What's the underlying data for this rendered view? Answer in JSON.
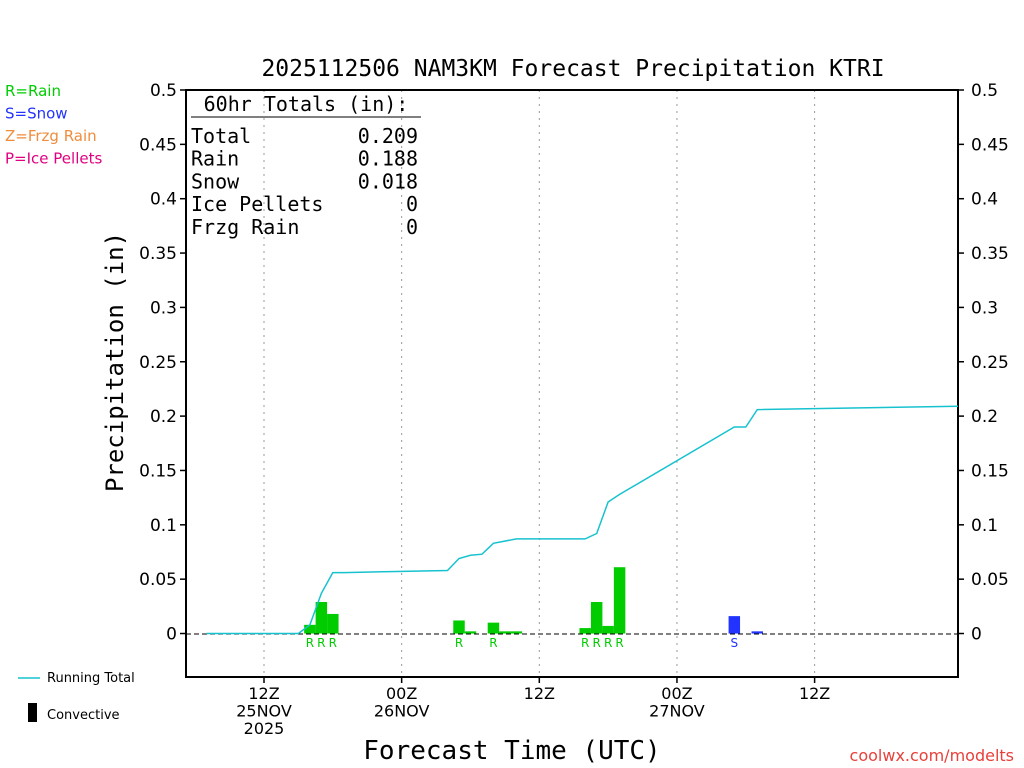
{
  "chart_data": {
    "type": "bar",
    "title": "2025112506 NAM3KM Forecast Precipitation KTRI",
    "xlabel": "Forecast Time (UTC)",
    "ylabel": "Precipitation (in)",
    "ylim": [
      -0.04,
      0.5
    ],
    "xlim_hours": [
      -6.8,
      60.5
    ],
    "y_ticks": [
      "0",
      "0.05",
      "0.1",
      "0.15",
      "0.2",
      "0.25",
      "0.3",
      "0.35",
      "0.4",
      "0.45",
      "0.5"
    ],
    "x_ticks": [
      {
        "hour": 0,
        "label1": "12Z",
        "label2": "25NOV",
        "label3": "2025"
      },
      {
        "hour": 12,
        "label1": "00Z",
        "label2": "26NOV",
        "label3": ""
      },
      {
        "hour": 24,
        "label1": "12Z",
        "label2": "",
        "label3": ""
      },
      {
        "hour": 36,
        "label1": "00Z",
        "label2": "27NOV",
        "label3": ""
      },
      {
        "hour": 48,
        "label1": "12Z",
        "label2": "",
        "label3": ""
      }
    ],
    "bars": [
      {
        "hour": 4.0,
        "value": 0.008,
        "type": "R"
      },
      {
        "hour": 5.0,
        "value": 0.029,
        "type": "R"
      },
      {
        "hour": 6.0,
        "value": 0.018,
        "type": "R"
      },
      {
        "hour": 17.0,
        "value": 0.012,
        "type": "R"
      },
      {
        "hour": 18.0,
        "value": 0.002,
        "type": "R"
      },
      {
        "hour": 20.0,
        "value": 0.01,
        "type": "R"
      },
      {
        "hour": 21.0,
        "value": 0.002,
        "type": "R"
      },
      {
        "hour": 22.0,
        "value": 0.002,
        "type": "R"
      },
      {
        "hour": 28.0,
        "value": 0.005,
        "type": "R"
      },
      {
        "hour": 29.0,
        "value": 0.029,
        "type": "R"
      },
      {
        "hour": 30.0,
        "value": 0.007,
        "type": "R"
      },
      {
        "hour": 31.0,
        "value": 0.061,
        "type": "R"
      },
      {
        "hour": 41.0,
        "value": 0.016,
        "type": "S"
      },
      {
        "hour": 43.0,
        "value": 0.002,
        "type": "S"
      }
    ],
    "running_total": {
      "name": "Running Total",
      "hours": [
        -5,
        3,
        4,
        5,
        6,
        7,
        11,
        16,
        17,
        18,
        19,
        20,
        22,
        28,
        29,
        30,
        31,
        41,
        42,
        43,
        60.5
      ],
      "values": [
        0,
        0,
        0.008,
        0.037,
        0.056,
        0.056,
        0.057,
        0.058,
        0.069,
        0.072,
        0.073,
        0.083,
        0.087,
        0.087,
        0.092,
        0.121,
        0.128,
        0.19,
        0.19,
        0.206,
        0.209
      ]
    },
    "legend": [
      {
        "label": "R=Rain",
        "color": "#00cc00"
      },
      {
        "label": "S=Snow",
        "color": "#2233ff"
      },
      {
        "label": "Z=Frzg Rain",
        "color": "#f08c3c"
      },
      {
        "label": "P=Ice Pellets",
        "color": "#e0007f"
      }
    ],
    "bottom_legend": {
      "running_total": "Running Total",
      "convective": "Convective"
    }
  },
  "totals": {
    "header": "60hr Totals (in):",
    "rows": [
      {
        "label": "Total",
        "value": "0.209"
      },
      {
        "label": "Rain",
        "value": "0.188"
      },
      {
        "label": "Snow",
        "value": "0.018"
      },
      {
        "label": "Ice Pellets",
        "value": "0"
      },
      {
        "label": "Frzg Rain",
        "value": "0"
      }
    ]
  },
  "colors": {
    "rain": "#00cc00",
    "snow": "#2233ff",
    "running_total": "#17c2cf",
    "watermark": "#e8403a"
  },
  "watermark": "coolwx.com/modelts"
}
